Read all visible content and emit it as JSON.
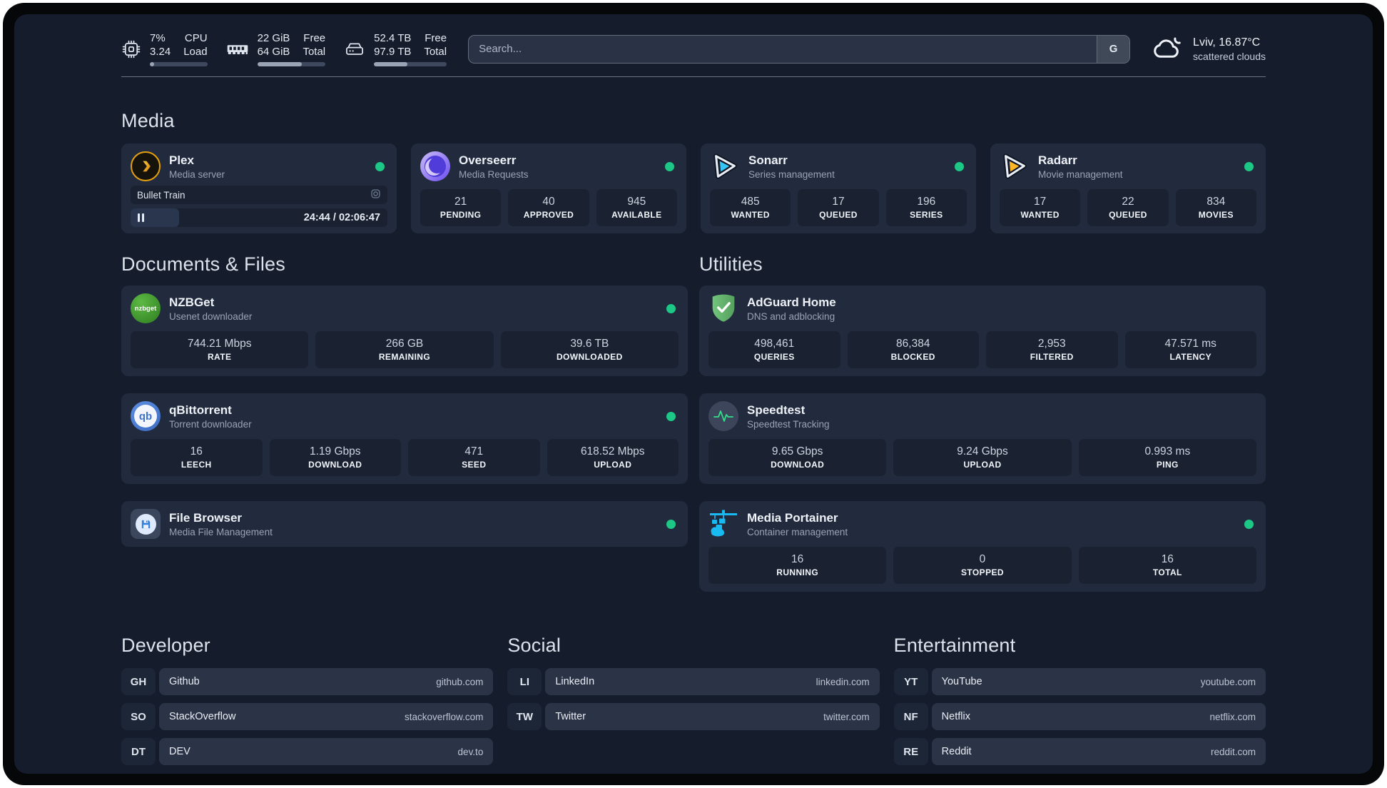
{
  "topbar": {
    "stats": [
      {
        "icon": "cpu",
        "values": [
          "7%",
          "3.24"
        ],
        "labels": [
          "CPU",
          "Load"
        ],
        "progress": 7
      },
      {
        "icon": "memory",
        "values": [
          "22 GiB",
          "64 GiB"
        ],
        "labels": [
          "Free",
          "Total"
        ],
        "progress": 65
      },
      {
        "icon": "disk",
        "values": [
          "52.4 TB",
          "97.9 TB"
        ],
        "labels": [
          "Free",
          "Total"
        ],
        "progress": 46
      }
    ],
    "search": {
      "placeholder": "Search...",
      "engine_button": "G"
    },
    "weather": {
      "location": "Lviv, 16.87°C",
      "condition": "scattered clouds"
    }
  },
  "media": {
    "title": "Media",
    "plex": {
      "name": "Plex",
      "desc": "Media server",
      "now_playing": "Bullet Train",
      "time": "24:44 / 02:06:47",
      "progress_pct": 19
    },
    "overseerr": {
      "name": "Overseerr",
      "desc": "Media Requests",
      "stats": [
        {
          "value": "21",
          "label": "PENDING"
        },
        {
          "value": "40",
          "label": "APPROVED"
        },
        {
          "value": "945",
          "label": "AVAILABLE"
        }
      ]
    },
    "sonarr": {
      "name": "Sonarr",
      "desc": "Series management",
      "stats": [
        {
          "value": "485",
          "label": "WANTED"
        },
        {
          "value": "17",
          "label": "QUEUED"
        },
        {
          "value": "196",
          "label": "SERIES"
        }
      ]
    },
    "radarr": {
      "name": "Radarr",
      "desc": "Movie management",
      "stats": [
        {
          "value": "17",
          "label": "WANTED"
        },
        {
          "value": "22",
          "label": "QUEUED"
        },
        {
          "value": "834",
          "label": "MOVIES"
        }
      ]
    }
  },
  "documents": {
    "title": "Documents & Files",
    "nzbget": {
      "name": "NZBGet",
      "desc": "Usenet downloader",
      "stats": [
        {
          "value": "744.21 Mbps",
          "label": "RATE"
        },
        {
          "value": "266 GB",
          "label": "REMAINING"
        },
        {
          "value": "39.6 TB",
          "label": "DOWNLOADED"
        }
      ]
    },
    "qbittorrent": {
      "name": "qBittorrent",
      "desc": "Torrent downloader",
      "stats": [
        {
          "value": "16",
          "label": "LEECH"
        },
        {
          "value": "1.19 Gbps",
          "label": "DOWNLOAD"
        },
        {
          "value": "471",
          "label": "SEED"
        },
        {
          "value": "618.52 Mbps",
          "label": "UPLOAD"
        }
      ]
    },
    "filebrowser": {
      "name": "File Browser",
      "desc": "Media File Management"
    }
  },
  "utilities": {
    "title": "Utilities",
    "adguard": {
      "name": "AdGuard Home",
      "desc": "DNS and adblocking",
      "stats": [
        {
          "value": "498,461",
          "label": "QUERIES"
        },
        {
          "value": "86,384",
          "label": "BLOCKED"
        },
        {
          "value": "2,953",
          "label": "FILTERED"
        },
        {
          "value": "47.571 ms",
          "label": "LATENCY"
        }
      ]
    },
    "speedtest": {
      "name": "Speedtest",
      "desc": "Speedtest Tracking",
      "stats": [
        {
          "value": "9.65 Gbps",
          "label": "DOWNLOAD"
        },
        {
          "value": "9.24 Gbps",
          "label": "UPLOAD"
        },
        {
          "value": "0.993 ms",
          "label": "PING"
        }
      ]
    },
    "portainer": {
      "name": "Media Portainer",
      "desc": "Container management",
      "stats": [
        {
          "value": "16",
          "label": "RUNNING"
        },
        {
          "value": "0",
          "label": "STOPPED"
        },
        {
          "value": "16",
          "label": "TOTAL"
        }
      ]
    }
  },
  "links": {
    "developer": {
      "title": "Developer",
      "items": [
        {
          "abbr": "GH",
          "name": "Github",
          "url": "github.com"
        },
        {
          "abbr": "SO",
          "name": "StackOverflow",
          "url": "stackoverflow.com"
        },
        {
          "abbr": "DT",
          "name": "DEV",
          "url": "dev.to"
        }
      ]
    },
    "social": {
      "title": "Social",
      "items": [
        {
          "abbr": "LI",
          "name": "LinkedIn",
          "url": "linkedin.com"
        },
        {
          "abbr": "TW",
          "name": "Twitter",
          "url": "twitter.com"
        }
      ]
    },
    "entertainment": {
      "title": "Entertainment",
      "items": [
        {
          "abbr": "YT",
          "name": "YouTube",
          "url": "youtube.com"
        },
        {
          "abbr": "NF",
          "name": "Netflix",
          "url": "netflix.com"
        },
        {
          "abbr": "RE",
          "name": "Reddit",
          "url": "reddit.com"
        }
      ]
    }
  },
  "icons": {
    "nzbget_logo_text": "nzbget",
    "qb_logo_text": "qb"
  },
  "colors": {
    "status_green": "#1dc886",
    "plex_orange": "#e5a00d",
    "portainer_blue": "#19b9f1"
  }
}
